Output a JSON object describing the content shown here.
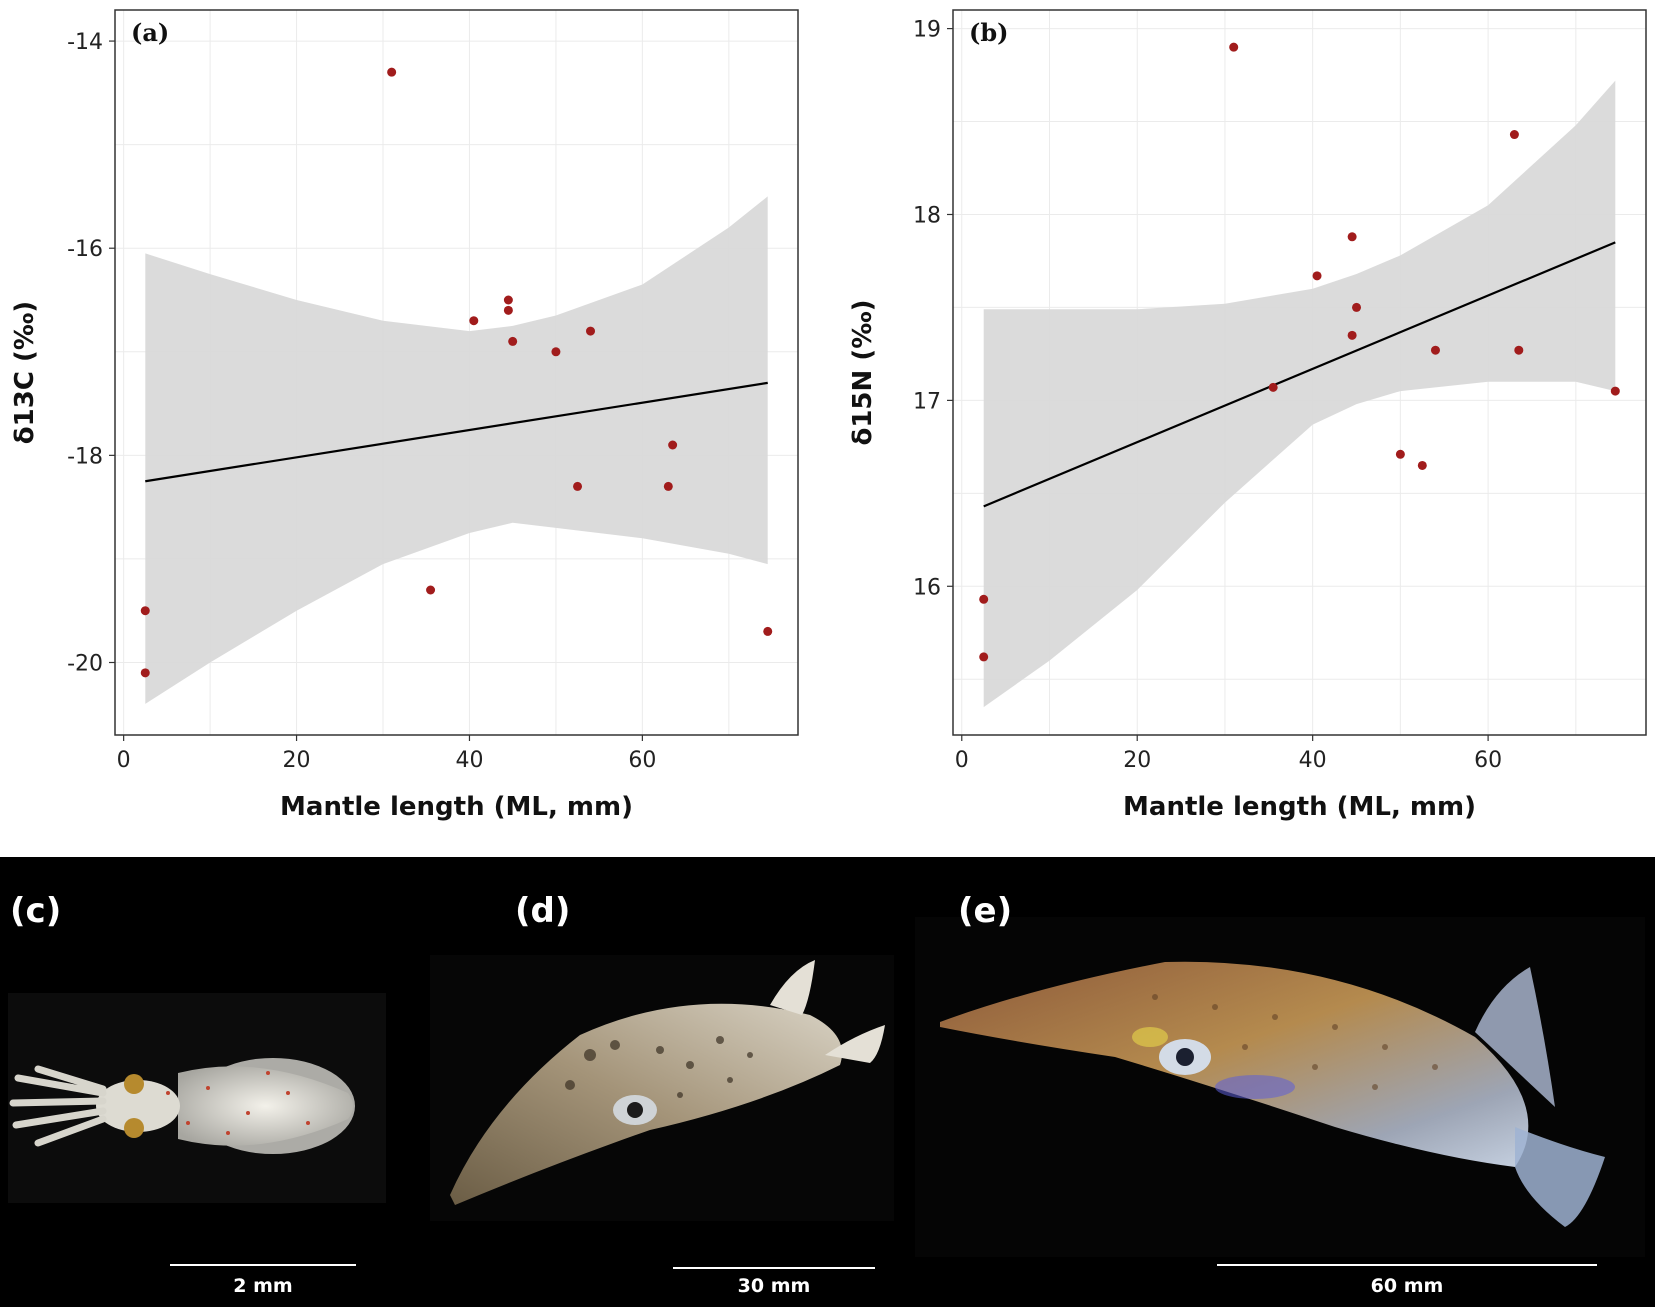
{
  "chart_data": [
    {
      "type": "scatter",
      "panel_label": "(a)",
      "xlabel": "Mantle length (ML, mm)",
      "ylabel": "δ13C (‰)",
      "xlim": [
        -1,
        78
      ],
      "ylim": [
        -20.7,
        -13.7
      ],
      "xticks": [
        0,
        20,
        40,
        60
      ],
      "yticks": [
        -20,
        -18,
        -16,
        -14
      ],
      "x": [
        2.5,
        2.5,
        31,
        35.5,
        40.5,
        44.5,
        44.5,
        45,
        50,
        52.5,
        54,
        63,
        63.5,
        74.5
      ],
      "y": [
        -19.5,
        -20.1,
        -14.3,
        -19.3,
        -16.7,
        -16.5,
        -16.6,
        -16.9,
        -17.0,
        -18.3,
        -16.8,
        -18.3,
        -17.9,
        -19.7
      ],
      "fit": {
        "x": [
          2.5,
          74.5
        ],
        "y": [
          -18.25,
          -17.3
        ]
      },
      "ci": {
        "x": [
          2.5,
          10,
          20,
          30,
          40,
          45,
          50,
          60,
          70,
          74.5
        ],
        "lower": [
          -20.4,
          -20.0,
          -19.5,
          -19.05,
          -18.75,
          -18.65,
          -18.7,
          -18.8,
          -18.95,
          -19.05
        ],
        "upper": [
          -16.05,
          -16.25,
          -16.5,
          -16.7,
          -16.8,
          -16.75,
          -16.65,
          -16.35,
          -15.8,
          -15.5
        ]
      }
    },
    {
      "type": "scatter",
      "panel_label": "(b)",
      "xlabel": "Mantle length (ML, mm)",
      "ylabel": "δ15N (‰)",
      "xlim": [
        -1,
        78
      ],
      "ylim": [
        15.2,
        19.1
      ],
      "xticks": [
        0,
        20,
        40,
        60
      ],
      "yticks": [
        16,
        17,
        18,
        19
      ],
      "x": [
        2.5,
        2.5,
        31,
        35.5,
        40.5,
        44.5,
        44.5,
        45,
        50,
        52.5,
        54,
        63,
        63.5,
        74.5
      ],
      "y": [
        15.93,
        15.62,
        18.9,
        17.07,
        17.67,
        17.88,
        17.35,
        17.5,
        16.71,
        16.65,
        17.27,
        18.43,
        17.27,
        17.05
      ],
      "fit": {
        "x": [
          2.5,
          74.5
        ],
        "y": [
          16.43,
          17.85
        ]
      },
      "ci": {
        "x": [
          2.5,
          10,
          20,
          30,
          40,
          45,
          50,
          60,
          70,
          74.5
        ],
        "lower": [
          15.35,
          15.6,
          15.98,
          16.45,
          16.87,
          16.98,
          17.05,
          17.1,
          17.1,
          17.05
        ],
        "upper": [
          17.49,
          17.49,
          17.49,
          17.52,
          17.6,
          17.68,
          17.78,
          18.05,
          18.48,
          18.72
        ]
      }
    }
  ],
  "photos": {
    "c": {
      "label": "(c)",
      "scale_text": "2 mm"
    },
    "d": {
      "label": "(d)",
      "scale_text": "30 mm"
    },
    "e": {
      "label": "(e)",
      "scale_text": "60 mm"
    }
  },
  "colors": {
    "point": "#a11c1c",
    "ci_band": "#d9d9d9",
    "fit_line": "#000000",
    "grid": "#ebebeb",
    "photo_background": "#000000"
  }
}
